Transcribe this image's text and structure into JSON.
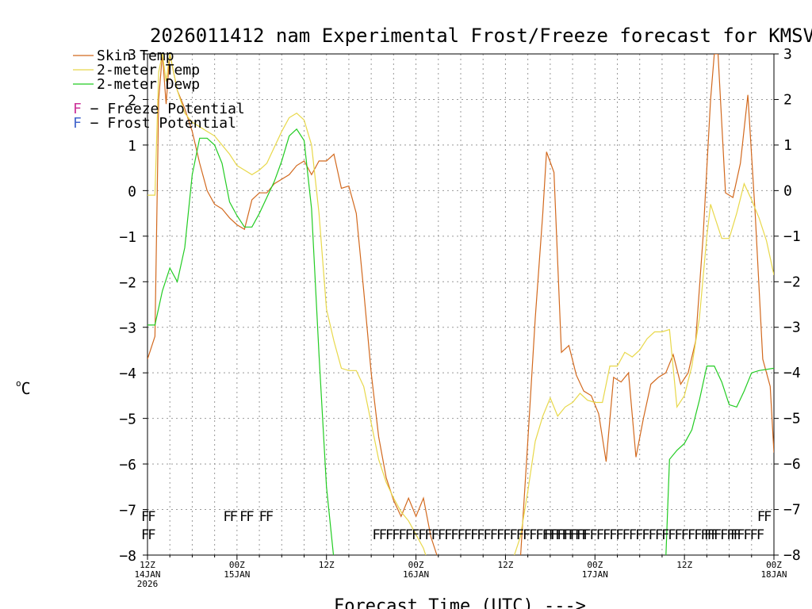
{
  "chart_data": {
    "type": "line",
    "title": "2026011412 nam Experimental Frost/Freeze forecast for KMSV",
    "xlabel": "Forecast Time (UTC) --->",
    "ylabel": "°C",
    "ylabel_superscript": "o",
    "ylabel_unit": "C",
    "ylim": [
      -8,
      3
    ],
    "yticks": [
      3,
      2,
      1,
      0,
      -1,
      -2,
      -3,
      -4,
      -5,
      -6,
      -7,
      -8
    ],
    "yticks_left_labels": [
      "3",
      "2",
      "1",
      "0",
      "−1",
      "−2",
      "−3",
      "−4",
      "−5",
      "−6",
      "−7",
      "−8"
    ],
    "yticks_right_labels": [
      "3",
      "2",
      "1",
      "0",
      "−1",
      "−2",
      "−3",
      "−4",
      "−5",
      "−6",
      "−7",
      "−8"
    ],
    "xlim": [
      0,
      84
    ],
    "x_unit": "forecast hour",
    "xticks": [
      {
        "hour": 0,
        "label": "12Z",
        "sub": "14JAN",
        "sub2": "2026"
      },
      {
        "hour": 12,
        "label": "00Z",
        "sub": "15JAN"
      },
      {
        "hour": 24,
        "label": "12Z"
      },
      {
        "hour": 36,
        "label": "00Z",
        "sub": "16JAN"
      },
      {
        "hour": 48,
        "label": "12Z"
      },
      {
        "hour": 60,
        "label": "00Z",
        "sub": "17JAN"
      },
      {
        "hour": 72,
        "label": "12Z"
      },
      {
        "hour": 84,
        "label": "00Z",
        "sub": "18JAN"
      }
    ],
    "grid": true,
    "legend_position": "top-left",
    "series": [
      {
        "name": "Skin Temp",
        "color": "#d2691e",
        "points": [
          [
            0,
            -3.7
          ],
          [
            1,
            -3.2
          ],
          [
            1.5,
            2.0
          ],
          [
            2,
            3.0
          ],
          [
            2.5,
            1.9
          ],
          [
            3,
            3.0
          ],
          [
            4,
            2.2
          ],
          [
            5,
            1.8
          ],
          [
            6,
            1.3
          ],
          [
            7,
            0.6
          ],
          [
            8,
            0.0
          ],
          [
            9,
            -0.3
          ],
          [
            10,
            -0.4
          ],
          [
            11,
            -0.6
          ],
          [
            12,
            -0.75
          ],
          [
            13,
            -0.85
          ],
          [
            14,
            -0.2
          ],
          [
            15,
            -0.05
          ],
          [
            16,
            -0.05
          ],
          [
            17,
            0.15
          ],
          [
            18,
            0.25
          ],
          [
            19,
            0.35
          ],
          [
            20,
            0.55
          ],
          [
            21,
            0.65
          ],
          [
            22,
            0.35
          ],
          [
            23,
            0.65
          ],
          [
            24,
            0.65
          ],
          [
            25,
            0.8
          ],
          [
            26,
            0.05
          ],
          [
            27,
            0.1
          ],
          [
            28,
            -0.5
          ],
          [
            29,
            -2.2
          ],
          [
            30,
            -4.0
          ],
          [
            31,
            -5.4
          ],
          [
            32,
            -6.3
          ],
          [
            33,
            -6.8
          ],
          [
            34,
            -7.15
          ],
          [
            35,
            -6.75
          ],
          [
            36,
            -7.15
          ],
          [
            37,
            -6.75
          ],
          [
            38,
            -7.6
          ],
          [
            39,
            -8.1
          ],
          [
            50,
            -8.1
          ],
          [
            51,
            -5.5
          ],
          [
            52,
            -2.8
          ],
          [
            53,
            -0.5
          ],
          [
            53.5,
            0.85
          ],
          [
            54.5,
            0.4
          ],
          [
            55.5,
            -3.55
          ],
          [
            56.5,
            -3.4
          ],
          [
            57.5,
            -4.05
          ],
          [
            58.5,
            -4.4
          ],
          [
            59.5,
            -4.5
          ],
          [
            60.5,
            -4.9
          ],
          [
            61.5,
            -5.95
          ],
          [
            62.5,
            -4.1
          ],
          [
            63.5,
            -4.2
          ],
          [
            64.5,
            -4.0
          ],
          [
            65.5,
            -5.85
          ],
          [
            66.5,
            -5.0
          ],
          [
            67.5,
            -4.25
          ],
          [
            68.5,
            -4.1
          ],
          [
            69.5,
            -4.0
          ],
          [
            70.5,
            -3.6
          ],
          [
            71.5,
            -4.25
          ],
          [
            72.5,
            -4.0
          ],
          [
            73.5,
            -3.3
          ],
          [
            74.5,
            -1.0
          ],
          [
            75.5,
            2.0
          ],
          [
            76,
            3.0
          ],
          [
            76.5,
            3.0
          ],
          [
            77.5,
            -0.05
          ],
          [
            78.5,
            -0.15
          ],
          [
            79.5,
            0.6
          ],
          [
            80.5,
            2.1
          ],
          [
            81.5,
            -0.55
          ],
          [
            82.5,
            -3.7
          ],
          [
            83.5,
            -4.3
          ],
          [
            84,
            -5.75
          ]
        ]
      },
      {
        "name": "2-meter Temp",
        "color": "#e8d84a",
        "points": [
          [
            0,
            -0.1
          ],
          [
            1,
            -0.1
          ],
          [
            1.5,
            2.6
          ],
          [
            2,
            3.0
          ],
          [
            2.5,
            2.4
          ],
          [
            3,
            3.0
          ],
          [
            4,
            2.2
          ],
          [
            5,
            1.7
          ],
          [
            6,
            1.5
          ],
          [
            7,
            1.4
          ],
          [
            8,
            1.3
          ],
          [
            9,
            1.2
          ],
          [
            10,
            1.0
          ],
          [
            11,
            0.8
          ],
          [
            12,
            0.55
          ],
          [
            13,
            0.45
          ],
          [
            14,
            0.35
          ],
          [
            15,
            0.45
          ],
          [
            16,
            0.6
          ],
          [
            17,
            0.95
          ],
          [
            18,
            1.3
          ],
          [
            19,
            1.6
          ],
          [
            20,
            1.7
          ],
          [
            21,
            1.55
          ],
          [
            22,
            1.0
          ],
          [
            23,
            -0.5
          ],
          [
            24,
            -2.6
          ],
          [
            25,
            -3.3
          ],
          [
            26,
            -3.9
          ],
          [
            27,
            -3.95
          ],
          [
            28,
            -3.95
          ],
          [
            29,
            -4.3
          ],
          [
            30,
            -5.1
          ],
          [
            31,
            -5.9
          ],
          [
            32,
            -6.4
          ],
          [
            33,
            -6.75
          ],
          [
            34,
            -7.05
          ],
          [
            35,
            -7.25
          ],
          [
            36,
            -7.55
          ],
          [
            37,
            -7.85
          ],
          [
            37.5,
            -8.1
          ],
          [
            49,
            -8.1
          ],
          [
            50,
            -7.6
          ],
          [
            51,
            -6.6
          ],
          [
            52,
            -5.5
          ],
          [
            53,
            -4.95
          ],
          [
            54,
            -4.55
          ],
          [
            55,
            -4.95
          ],
          [
            56,
            -4.75
          ],
          [
            57,
            -4.65
          ],
          [
            58,
            -4.45
          ],
          [
            59,
            -4.6
          ],
          [
            60,
            -4.65
          ],
          [
            61,
            -4.65
          ],
          [
            62,
            -3.85
          ],
          [
            63,
            -3.85
          ],
          [
            64,
            -3.55
          ],
          [
            65,
            -3.65
          ],
          [
            66,
            -3.5
          ],
          [
            67,
            -3.25
          ],
          [
            68,
            -3.1
          ],
          [
            69,
            -3.1
          ],
          [
            70,
            -3.05
          ],
          [
            71,
            -4.75
          ],
          [
            72,
            -4.5
          ],
          [
            73,
            -3.85
          ],
          [
            74,
            -2.8
          ],
          [
            75,
            -1.0
          ],
          [
            75.5,
            -0.3
          ],
          [
            76,
            -0.55
          ],
          [
            77,
            -1.05
          ],
          [
            78,
            -1.05
          ],
          [
            79,
            -0.5
          ],
          [
            80,
            0.15
          ],
          [
            81,
            -0.2
          ],
          [
            82,
            -0.6
          ],
          [
            83,
            -1.1
          ],
          [
            84,
            -1.85
          ]
        ]
      },
      {
        "name": "2-meter Dewp",
        "color": "#22cc22",
        "points": [
          [
            0,
            -2.95
          ],
          [
            1,
            -2.95
          ],
          [
            2,
            -2.2
          ],
          [
            3,
            -1.7
          ],
          [
            4,
            -2.0
          ],
          [
            5,
            -1.25
          ],
          [
            6,
            0.35
          ],
          [
            7,
            1.15
          ],
          [
            8,
            1.15
          ],
          [
            9,
            1.0
          ],
          [
            10,
            0.6
          ],
          [
            11,
            -0.25
          ],
          [
            12,
            -0.55
          ],
          [
            13,
            -0.8
          ],
          [
            14,
            -0.8
          ],
          [
            15,
            -0.5
          ],
          [
            16,
            -0.15
          ],
          [
            17,
            0.2
          ],
          [
            18,
            0.65
          ],
          [
            19,
            1.2
          ],
          [
            20,
            1.35
          ],
          [
            21,
            1.1
          ],
          [
            22,
            -0.4
          ],
          [
            23,
            -3.6
          ],
          [
            24,
            -6.5
          ],
          [
            25,
            -8.1
          ],
          [
            69.5,
            -8.1
          ],
          [
            70,
            -5.9
          ],
          [
            71,
            -5.7
          ],
          [
            72,
            -5.55
          ],
          [
            73,
            -5.25
          ],
          [
            74,
            -4.6
          ],
          [
            75,
            -3.85
          ],
          [
            76,
            -3.85
          ],
          [
            77,
            -4.2
          ],
          [
            78,
            -4.7
          ],
          [
            79,
            -4.75
          ],
          [
            80,
            -4.4
          ],
          [
            81,
            -4.0
          ],
          [
            82,
            -3.95
          ],
          [
            84,
            -3.9
          ]
        ]
      }
    ],
    "legend": [
      {
        "label": "Skin Temp",
        "color": "#d2691e"
      },
      {
        "label": "2-meter Temp",
        "color": "#e8d84a"
      },
      {
        "label": "2-meter Dewp",
        "color": "#22cc22"
      }
    ],
    "potential_legend": [
      {
        "symbol": "F",
        "text": " − Freeze Potential",
        "color": "#cc3399"
      },
      {
        "symbol": "F",
        "text": " − Frost Potential",
        "color": "#4466cc"
      }
    ],
    "frost_potential_rows": [
      {
        "hour_start": 0,
        "text": "FF"
      },
      {
        "hour_start": 11,
        "text": "FF"
      },
      {
        "hour_start": 13.2,
        "text": "FF"
      },
      {
        "hour_start": 15.8,
        "text": "FF"
      },
      {
        "hour_start": 82.6,
        "text": "FF"
      }
    ],
    "freeze_potential_rows": [
      {
        "hour_start": 0,
        "text": "FF"
      },
      {
        "hour_start": 31,
        "text": "FFFFFFFFFFFFFFFFFFFFFFFFFFFFFFFFF"
      },
      {
        "hour_start": 54,
        "text": "FFFFFFFFFFFFFFFFFFFFFFFFFFFFFF"
      },
      {
        "hour_start": 75.5,
        "text": "FF"
      },
      {
        "hour_start": 79,
        "text": "FFFFF"
      }
    ]
  }
}
